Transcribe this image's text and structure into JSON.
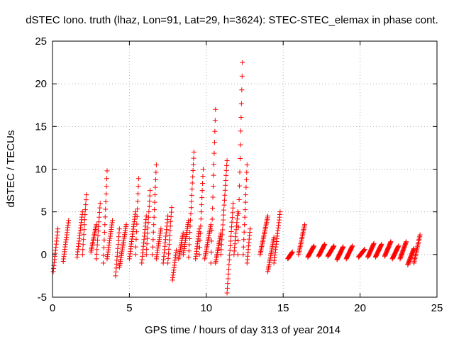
{
  "chart_data": {
    "type": "scatter",
    "title": "dSTEC Iono. truth (lhaz, Lon=91, Lat=29, h=3624): STEC-STEC_elemax in phase cont.",
    "xlabel": "GPS time / hours of day 313 of year 2014",
    "ylabel": "dSTEC  / TECUs",
    "xlim": [
      0,
      25
    ],
    "ylim": [
      -5,
      25
    ],
    "xticks": [
      0,
      5,
      10,
      15,
      20,
      25
    ],
    "yticks": [
      -5,
      0,
      5,
      10,
      15,
      20,
      25
    ],
    "grid": true,
    "marker": "+",
    "color": "#ff0000",
    "arcs": [
      {
        "t0": 0.05,
        "t1": 0.35,
        "v0": -2.0,
        "v1": 3.0
      },
      {
        "t0": 0.7,
        "t1": 1.05,
        "v0": -0.8,
        "v1": 4.0
      },
      {
        "t0": 1.6,
        "t1": 1.95,
        "v0": -0.3,
        "v1": 5.0
      },
      {
        "t0": 1.95,
        "t1": 2.2,
        "v0": 0.0,
        "v1": 7.0
      },
      {
        "t0": 2.5,
        "t1": 2.85,
        "v0": 0.3,
        "v1": 3.5
      },
      {
        "t0": 2.85,
        "t1": 3.1,
        "v0": -0.5,
        "v1": 6.0
      },
      {
        "t0": 3.3,
        "t1": 3.55,
        "v0": -1.0,
        "v1": 9.8
      },
      {
        "t0": 3.55,
        "t1": 3.9,
        "v0": -0.5,
        "v1": 4.0
      },
      {
        "t0": 4.1,
        "t1": 4.35,
        "v0": -2.5,
        "v1": 3.0
      },
      {
        "t0": 4.35,
        "t1": 4.8,
        "v0": -1.5,
        "v1": 3.5
      },
      {
        "t0": 5.0,
        "t1": 5.4,
        "v0": -0.5,
        "v1": 5.0
      },
      {
        "t0": 5.4,
        "t1": 5.6,
        "v0": 0.0,
        "v1": 8.9
      },
      {
        "t0": 5.8,
        "t1": 6.1,
        "v0": -1.0,
        "v1": 4.5
      },
      {
        "t0": 6.1,
        "t1": 6.35,
        "v0": 0.0,
        "v1": 7.5
      },
      {
        "t0": 6.5,
        "t1": 6.75,
        "v0": 0.0,
        "v1": 10.5
      },
      {
        "t0": 6.75,
        "t1": 7.05,
        "v0": -0.5,
        "v1": 3.0
      },
      {
        "t0": 7.2,
        "t1": 7.5,
        "v0": -1.0,
        "v1": 4.5
      },
      {
        "t0": 7.5,
        "t1": 7.75,
        "v0": -1.0,
        "v1": 5.5
      },
      {
        "t0": 7.8,
        "t1": 8.05,
        "v0": -3.0,
        "v1": 0.5
      },
      {
        "t0": 8.2,
        "t1": 8.5,
        "v0": -0.5,
        "v1": 2.5
      },
      {
        "t0": 8.5,
        "t1": 8.85,
        "v0": 0.0,
        "v1": 4.0
      },
      {
        "t0": 8.85,
        "t1": 9.2,
        "v0": -0.3,
        "v1": 12.0
      },
      {
        "t0": 9.3,
        "t1": 9.55,
        "v0": -0.5,
        "v1": 3.0
      },
      {
        "t0": 9.55,
        "t1": 9.8,
        "v0": 0.0,
        "v1": 10.0
      },
      {
        "t0": 9.9,
        "t1": 10.3,
        "v0": -0.5,
        "v1": 3.5
      },
      {
        "t0": 10.3,
        "t1": 10.6,
        "v0": -1.0,
        "v1": 17.0
      },
      {
        "t0": 10.6,
        "t1": 10.95,
        "v0": -1.0,
        "v1": 2.5
      },
      {
        "t0": 10.95,
        "t1": 11.35,
        "v0": 0.0,
        "v1": 11.0
      },
      {
        "t0": 11.35,
        "t1": 11.75,
        "v0": -4.5,
        "v1": 6.0
      },
      {
        "t0": 11.8,
        "t1": 12.05,
        "v0": 0.0,
        "v1": 5.0
      },
      {
        "t0": 12.05,
        "t1": 12.35,
        "v0": 0.0,
        "v1": 22.5
      },
      {
        "t0": 12.4,
        "t1": 12.65,
        "v0": 0.0,
        "v1": 10.5
      },
      {
        "t0": 12.65,
        "t1": 12.85,
        "v0": -1.0,
        "v1": 3.0
      },
      {
        "t0": 13.5,
        "t1": 14.0,
        "v0": 0.0,
        "v1": 4.5
      },
      {
        "t0": 14.0,
        "t1": 14.4,
        "v0": -2.0,
        "v1": 2.0
      },
      {
        "t0": 14.4,
        "t1": 14.8,
        "v0": -1.0,
        "v1": 5.0
      },
      {
        "t0": 15.3,
        "t1": 15.6,
        "v0": -0.5,
        "v1": 0.3
      },
      {
        "t0": 16.0,
        "t1": 16.4,
        "v0": 0.0,
        "v1": 3.5
      },
      {
        "t0": 16.6,
        "t1": 17.0,
        "v0": -0.3,
        "v1": 1.0
      },
      {
        "t0": 17.3,
        "t1": 17.7,
        "v0": -0.2,
        "v1": 1.2
      },
      {
        "t0": 17.9,
        "t1": 18.3,
        "v0": -0.2,
        "v1": 1.0
      },
      {
        "t0": 18.5,
        "t1": 18.9,
        "v0": -0.6,
        "v1": 0.9
      },
      {
        "t0": 19.1,
        "t1": 19.5,
        "v0": -0.5,
        "v1": 1.0
      },
      {
        "t0": 19.9,
        "t1": 20.3,
        "v0": -0.3,
        "v1": 0.6
      },
      {
        "t0": 20.5,
        "t1": 20.9,
        "v0": -0.3,
        "v1": 1.3
      },
      {
        "t0": 21.0,
        "t1": 21.4,
        "v0": -0.3,
        "v1": 1.2
      },
      {
        "t0": 21.6,
        "t1": 22.0,
        "v0": -0.2,
        "v1": 1.5
      },
      {
        "t0": 22.1,
        "t1": 22.5,
        "v0": -0.5,
        "v1": 1.0
      },
      {
        "t0": 22.6,
        "t1": 23.0,
        "v0": -0.5,
        "v1": 1.5
      },
      {
        "t0": 23.1,
        "t1": 23.5,
        "v0": -1.2,
        "v1": 0.7
      },
      {
        "t0": 23.5,
        "t1": 23.9,
        "v0": -1.0,
        "v1": 2.3
      }
    ]
  }
}
